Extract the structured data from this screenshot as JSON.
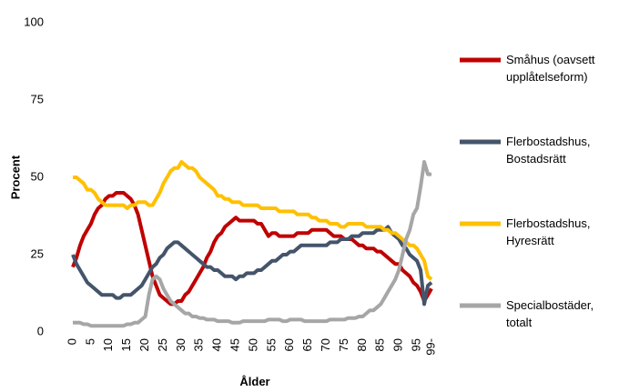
{
  "chart_data": {
    "type": "line",
    "x_label": "Ålder",
    "y_label": "Procent",
    "categories": [
      "0",
      null,
      null,
      null,
      null,
      "5",
      null,
      null,
      null,
      null,
      "10",
      null,
      null,
      null,
      null,
      "15",
      null,
      null,
      null,
      null,
      "20",
      null,
      null,
      null,
      null,
      "25",
      null,
      null,
      null,
      null,
      "30",
      null,
      null,
      null,
      null,
      "35",
      null,
      null,
      null,
      null,
      "40",
      null,
      null,
      null,
      null,
      "45",
      null,
      null,
      null,
      null,
      "50",
      null,
      null,
      null,
      null,
      "55",
      null,
      null,
      null,
      null,
      "60",
      null,
      null,
      null,
      null,
      "65",
      null,
      null,
      null,
      null,
      "70",
      null,
      null,
      null,
      null,
      "75",
      null,
      null,
      null,
      null,
      "80",
      null,
      null,
      null,
      null,
      "85",
      null,
      null,
      null,
      null,
      "90",
      null,
      null,
      null,
      null,
      "95",
      null,
      null,
      null,
      "99-"
    ],
    "ylim": [
      0,
      100
    ],
    "yticks": [
      0,
      25,
      50,
      75,
      100
    ],
    "grid": false,
    "legend": "right",
    "series": [
      {
        "name": "Småhus (oavsett upplåtelseform)",
        "color": "#c00000",
        "values": [
          21,
          24,
          28,
          31,
          33,
          35,
          38,
          40,
          41,
          43,
          44,
          44,
          45,
          45,
          45,
          44,
          43,
          41,
          38,
          33,
          28,
          23,
          18,
          15,
          12,
          11,
          10,
          9,
          9,
          10,
          10,
          12,
          13,
          15,
          17,
          19,
          21,
          24,
          26,
          29,
          31,
          32,
          34,
          35,
          36,
          37,
          36,
          36,
          36,
          36,
          36,
          35,
          35,
          33,
          31,
          32,
          32,
          31,
          31,
          31,
          31,
          31,
          32,
          32,
          32,
          32,
          33,
          33,
          33,
          33,
          33,
          32,
          31,
          31,
          31,
          30,
          30,
          30,
          29,
          28,
          28,
          27,
          27,
          27,
          26,
          26,
          25,
          24,
          23,
          22,
          22,
          20,
          19,
          18,
          16,
          15,
          13,
          10,
          12,
          14
        ]
      },
      {
        "name": "Flerbostadshus, Bostadsrätt",
        "color": "#44546a",
        "values": [
          25,
          22,
          20,
          18,
          16,
          15,
          14,
          13,
          12,
          12,
          12,
          12,
          11,
          11,
          12,
          12,
          12,
          13,
          14,
          15,
          17,
          19,
          21,
          22,
          24,
          25,
          27,
          28,
          29,
          29,
          28,
          27,
          26,
          25,
          24,
          23,
          22,
          21,
          21,
          20,
          20,
          19,
          18,
          18,
          18,
          17,
          18,
          18,
          19,
          19,
          19,
          20,
          20,
          21,
          22,
          23,
          23,
          24,
          25,
          25,
          26,
          26,
          27,
          28,
          28,
          28,
          28,
          28,
          28,
          28,
          28,
          29,
          29,
          29,
          30,
          30,
          30,
          31,
          31,
          31,
          32,
          32,
          32,
          32,
          33,
          33,
          33,
          34,
          32,
          31,
          30,
          28,
          27,
          25,
          24,
          23,
          20,
          9,
          15,
          16
        ]
      },
      {
        "name": "Flerbostadshus, Hyresrätt",
        "color": "#ffc000",
        "values": [
          50,
          50,
          49,
          48,
          46,
          46,
          45,
          43,
          42,
          41,
          41,
          41,
          41,
          41,
          41,
          40,
          41,
          41,
          42,
          42,
          42,
          41,
          41,
          43,
          45,
          48,
          50,
          52,
          53,
          53,
          55,
          54,
          53,
          53,
          52,
          50,
          49,
          48,
          47,
          46,
          44,
          44,
          43,
          43,
          42,
          42,
          42,
          41,
          41,
          41,
          41,
          41,
          40,
          40,
          40,
          40,
          40,
          39,
          39,
          39,
          39,
          39,
          38,
          38,
          38,
          38,
          37,
          37,
          36,
          36,
          36,
          35,
          35,
          35,
          34,
          34,
          35,
          35,
          35,
          35,
          35,
          34,
          34,
          34,
          34,
          34,
          33,
          33,
          32,
          32,
          31,
          30,
          29,
          28,
          28,
          27,
          25,
          23,
          18,
          17
        ]
      },
      {
        "name": "Specialbostäder, totalt",
        "color": "#a6a6a6",
        "values": [
          3,
          3,
          3,
          2.5,
          2.5,
          2,
          2,
          2,
          2,
          2,
          2,
          2,
          2,
          2,
          2,
          2.5,
          2.5,
          3,
          3,
          4,
          5,
          12,
          17,
          18,
          17,
          14,
          12,
          10,
          9,
          8,
          7,
          6,
          6,
          5,
          5,
          4.5,
          4.5,
          4,
          4,
          4,
          3.5,
          3.5,
          3.5,
          3.5,
          3,
          3,
          3,
          3.5,
          3.5,
          3.5,
          3.5,
          3.5,
          3.5,
          3.5,
          4,
          4,
          4,
          4,
          3.5,
          3.5,
          4,
          4,
          4,
          4,
          3.5,
          3.5,
          3.5,
          3.5,
          3.5,
          3.5,
          3.5,
          4,
          4,
          4,
          4,
          4,
          4.5,
          4.5,
          4.5,
          5,
          5,
          6,
          7,
          7,
          8,
          9,
          11,
          13,
          15,
          17,
          20,
          25,
          30,
          33,
          38,
          40,
          47,
          55,
          51,
          51
        ]
      }
    ]
  }
}
